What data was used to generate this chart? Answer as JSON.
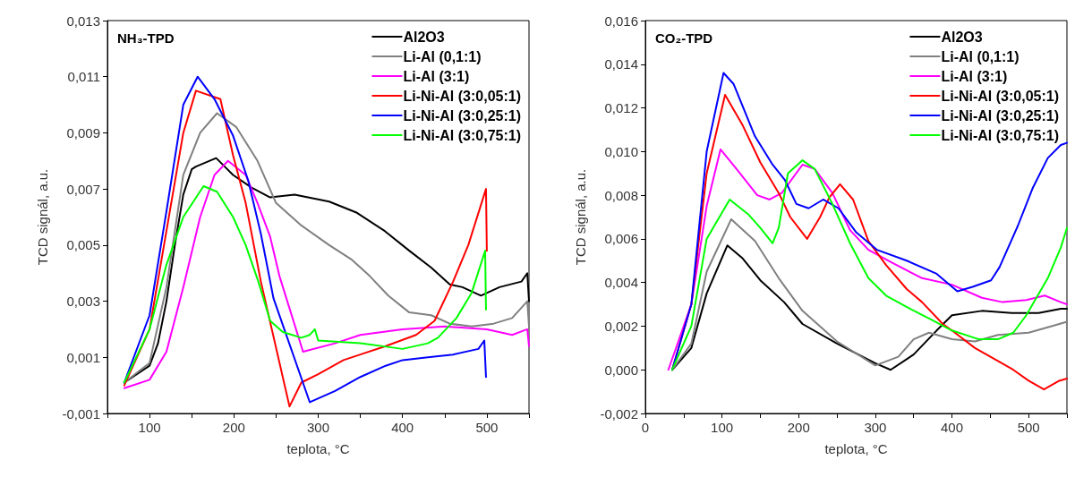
{
  "chart_data": [
    {
      "type": "line",
      "title": "NH₃-TPD",
      "xlabel": "teplota, °C",
      "ylabel": "TCD signál, a.u.",
      "legend": "top right",
      "grid": false,
      "marker": "none",
      "line_style": "solid",
      "xlim": [
        50,
        550
      ],
      "xticks": [
        {
          "value": 50,
          "label": null
        },
        100,
        {
          "value": 150,
          "label": null
        },
        200,
        {
          "value": 250,
          "label": null
        },
        300,
        {
          "value": 350,
          "label": null
        },
        400,
        {
          "value": 450,
          "label": null
        },
        500,
        {
          "value": 550,
          "label": null
        }
      ],
      "ylim": [
        -0.001,
        0.013
      ],
      "yticks": [
        {
          "value": -0.001,
          "label": "-0,001"
        },
        {
          "value": 0.001,
          "label": "0,001"
        },
        {
          "value": 0.003,
          "label": "0,003"
        },
        {
          "value": 0.005,
          "label": "0,005"
        },
        {
          "value": 0.007,
          "label": "0,007"
        },
        {
          "value": 0.009,
          "label": "0,009"
        },
        {
          "value": 0.011,
          "label": "0,011"
        },
        {
          "value": 0.013,
          "label": "0,013"
        }
      ],
      "series": [
        {
          "name": "Al2O3",
          "color": "#000000",
          "x": [
            70,
            100,
            110,
            120,
            130,
            140,
            150,
            155,
            179,
            199,
            221,
            243,
            272,
            313,
            346,
            379,
            408,
            434,
            456,
            471,
            493,
            515,
            541,
            548,
            550
          ],
          "values": [
            0.0001,
            0.0007,
            0.0015,
            0.003,
            0.005,
            0.0068,
            0.0077,
            0.0078,
            0.0081,
            0.0075,
            0.00705,
            0.0067,
            0.0068,
            0.00655,
            0.00615,
            0.0055,
            0.0048,
            0.0042,
            0.0036,
            0.0035,
            0.0032,
            0.0035,
            0.0037,
            0.004,
            0.003
          ]
        },
        {
          "name": "Li-Al (0,1:1)",
          "color": "#808080",
          "x": [
            70,
            100,
            120,
            140,
            160,
            180,
            203,
            228,
            250,
            280,
            313,
            339,
            361,
            383,
            408,
            434,
            456,
            482,
            508,
            530,
            548,
            550
          ],
          "values": [
            0.0001,
            0.0008,
            0.0035,
            0.0075,
            0.009,
            0.0097,
            0.0092,
            0.008,
            0.0065,
            0.0057,
            0.005,
            0.0045,
            0.0039,
            0.0032,
            0.0026,
            0.0025,
            0.0022,
            0.0021,
            0.0022,
            0.0024,
            0.003,
            0.0021
          ]
        },
        {
          "name": "Li-Al (3:1)",
          "color": "#ff00ff",
          "x": [
            70,
            100,
            120,
            140,
            160,
            177,
            193,
            214,
            228,
            243,
            254,
            282,
            320,
            350,
            400,
            450,
            500,
            530,
            548,
            550
          ],
          "values": [
            -0.0001,
            0.0002,
            0.0012,
            0.0035,
            0.006,
            0.0075,
            0.008,
            0.0075,
            0.0065,
            0.0053,
            0.0039,
            0.0012,
            0.0015,
            0.0018,
            0.002,
            0.0021,
            0.002,
            0.0018,
            0.002,
            0.0014
          ]
        },
        {
          "name": "Li-Ni-Al (3:0,05:1)",
          "color": "#ff0000",
          "x": [
            70,
            100,
            120,
            140,
            155,
            184,
            199,
            214,
            232,
            266,
            280,
            300,
            330,
            350,
            380,
            416,
            438,
            460,
            478,
            499,
            500
          ],
          "values": [
            0,
            0.002,
            0.0055,
            0.009,
            0.0105,
            0.0102,
            0.0082,
            0.0065,
            0.0037,
            -0.00075,
            0.0001,
            0.0004,
            0.0009,
            0.0011,
            0.0014,
            0.0018,
            0.0023,
            0.0037,
            0.005,
            0.007,
            0.0048
          ]
        },
        {
          "name": "Li-Ni-Al (3:0,25:1)",
          "color": "#0000ff",
          "x": [
            70,
            100,
            120,
            140,
            157,
            177,
            199,
            217,
            232,
            247,
            290,
            320,
            350,
            380,
            400,
            430,
            460,
            490,
            497,
            499
          ],
          "values": [
            0.0001,
            0.0025,
            0.0062,
            0.01,
            0.011,
            0.0102,
            0.0089,
            0.0073,
            0.0054,
            0.0031,
            -0.0006,
            -0.0002,
            0.0003,
            0.0007,
            0.0009,
            0.001,
            0.0011,
            0.0013,
            0.0016,
            0.0003
          ]
        },
        {
          "name": "Li-Ni-Al (3:0,75:1)",
          "color": "#00ff00",
          "x": [
            70,
            100,
            120,
            140,
            164,
            180,
            199,
            214,
            229,
            243,
            258,
            280,
            290,
            296,
            300,
            350,
            400,
            430,
            442,
            464,
            482,
            498,
            499
          ],
          "values": [
            0.0001,
            0.002,
            0.0043,
            0.006,
            0.0071,
            0.0069,
            0.006,
            0.005,
            0.0037,
            0.0023,
            0.0019,
            0.0017,
            0.0018,
            0.002,
            0.0016,
            0.0015,
            0.0013,
            0.0015,
            0.0017,
            0.0024,
            0.0033,
            0.0048,
            0.0027
          ]
        }
      ]
    },
    {
      "type": "line",
      "title": "CO₂-TPD",
      "xlabel": "teplota, °C",
      "ylabel": "TCD signál, a.u.",
      "legend": "top right",
      "grid": false,
      "marker": "none",
      "line_style": "solid",
      "xlim": [
        0,
        550
      ],
      "xticks": [
        0,
        {
          "value": 50,
          "label": null
        },
        100,
        {
          "value": 150,
          "label": null
        },
        200,
        {
          "value": 250,
          "label": null
        },
        300,
        {
          "value": 350,
          "label": null
        },
        400,
        {
          "value": 450,
          "label": null
        },
        500,
        {
          "value": 550,
          "label": null
        }
      ],
      "ylim": [
        -0.002,
        0.016
      ],
      "yticks": [
        {
          "value": -0.002,
          "label": "-0,002"
        },
        {
          "value": 0,
          "label": "0,000"
        },
        {
          "value": 0.002,
          "label": "0,002"
        },
        {
          "value": 0.004,
          "label": "0,004"
        },
        {
          "value": 0.006,
          "label": "0,006"
        },
        {
          "value": 0.008,
          "label": "0,008"
        },
        {
          "value": 0.01,
          "label": "0,010"
        },
        {
          "value": 0.012,
          "label": "0,012"
        },
        {
          "value": 0.014,
          "label": "0,014"
        },
        {
          "value": 0.016,
          "label": "0,016"
        }
      ],
      "series": [
        {
          "name": "Al2O3",
          "color": "#000000",
          "x": [
            35,
            60,
            80,
            107,
            127,
            150,
            181,
            205,
            250,
            300,
            320,
            350,
            380,
            400,
            439,
            478,
            513,
            542,
            550
          ],
          "values": [
            0,
            0.001,
            0.0035,
            0.0057,
            0.0051,
            0.0041,
            0.0031,
            0.0021,
            0.0012,
            0.0003,
            0,
            0.0007,
            0.0018,
            0.0025,
            0.0027,
            0.0026,
            0.0026,
            0.0028,
            0.0028
          ]
        },
        {
          "name": "Li-Al (0,1:1)",
          "color": "#808080",
          "x": [
            35,
            60,
            80,
            112,
            143,
            174,
            205,
            250,
            300,
            330,
            350,
            370,
            400,
            430,
            460,
            500,
            530,
            550
          ],
          "values": [
            0,
            0.0012,
            0.0045,
            0.0069,
            0.0059,
            0.0042,
            0.0027,
            0.0013,
            0.0002,
            0.0006,
            0.0014,
            0.0017,
            0.0014,
            0.0013,
            0.0016,
            0.0017,
            0.002,
            0.0022
          ]
        },
        {
          "name": "Li-Al (3:1)",
          "color": "#ff00ff",
          "x": [
            30,
            60,
            80,
            98,
            119,
            146,
            162,
            178,
            205,
            221,
            244,
            267,
            291,
            322,
            361,
            400,
            439,
            466,
            497,
            521,
            542,
            550
          ],
          "values": [
            0,
            0.003,
            0.0075,
            0.0101,
            0.0092,
            0.008,
            0.0078,
            0.0081,
            0.0094,
            0.0092,
            0.0081,
            0.0064,
            0.0055,
            0.0049,
            0.0042,
            0.0039,
            0.0033,
            0.0031,
            0.0032,
            0.0034,
            0.0031,
            0.003
          ]
        },
        {
          "name": "Li-Ni-Al (3:0,05:1)",
          "color": "#ff0000",
          "x": [
            35,
            60,
            80,
            104,
            127,
            150,
            174,
            189,
            211,
            228,
            240,
            254,
            271,
            291,
            314,
            341,
            361,
            388,
            400,
            430,
            460,
            480,
            500,
            520,
            540,
            550
          ],
          "values": [
            0,
            0.003,
            0.009,
            0.0126,
            0.0112,
            0.0095,
            0.0081,
            0.007,
            0.006,
            0.007,
            0.0079,
            0.0085,
            0.0078,
            0.0059,
            0.0048,
            0.0037,
            0.0031,
            0.0021,
            0.0018,
            0.001,
            0.0004,
            0,
            -0.0005,
            -0.0009,
            -0.0005,
            -0.0004
          ]
        },
        {
          "name": "Li-Ni-Al (3:0,25:1)",
          "color": "#0000ff",
          "x": [
            35,
            60,
            80,
            102,
            115,
            143,
            166,
            182,
            197,
            213,
            232,
            252,
            275,
            302,
            341,
            380,
            407,
            427,
            451,
            462,
            486,
            505,
            525,
            542,
            550
          ],
          "values": [
            0,
            0.003,
            0.01,
            0.0136,
            0.0131,
            0.0107,
            0.0094,
            0.0087,
            0.0076,
            0.0074,
            0.0078,
            0.0074,
            0.0063,
            0.0055,
            0.005,
            0.0044,
            0.0036,
            0.0038,
            0.0041,
            0.0047,
            0.0066,
            0.0083,
            0.0097,
            0.0103,
            0.0104
          ]
        },
        {
          "name": "Li-Ni-Al (3:0,75:1)",
          "color": "#00ff00",
          "x": [
            35,
            60,
            80,
            110,
            135,
            150,
            166,
            174,
            186,
            205,
            221,
            244,
            267,
            291,
            314,
            345,
            373,
            400,
            435,
            460,
            480,
            497,
            525,
            542,
            550
          ],
          "values": [
            0,
            0.002,
            0.006,
            0.0078,
            0.0071,
            0.0065,
            0.0058,
            0.0065,
            0.009,
            0.0096,
            0.0092,
            0.0076,
            0.0058,
            0.0042,
            0.0034,
            0.0028,
            0.0023,
            0.0018,
            0.0014,
            0.0014,
            0.0017,
            0.0025,
            0.0042,
            0.0056,
            0.0065
          ]
        }
      ]
    }
  ]
}
